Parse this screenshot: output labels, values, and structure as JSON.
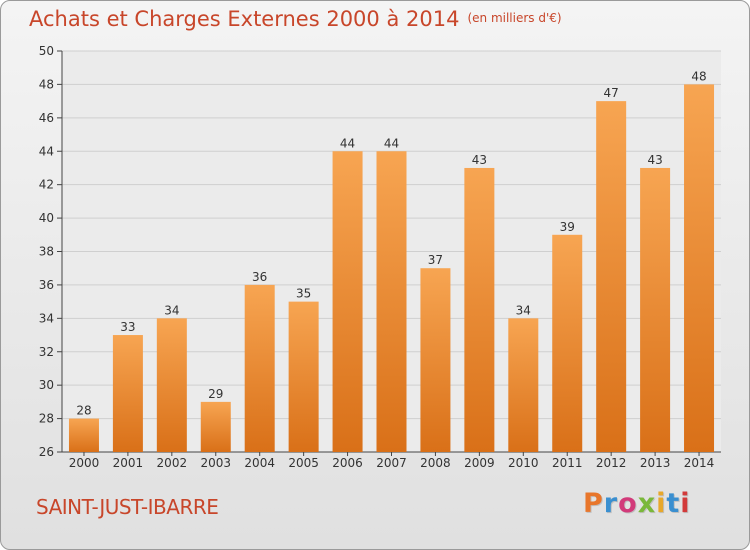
{
  "header": {
    "title": "Achats et Charges Externes 2000 à 2014",
    "unit": "(en milliers d'€)"
  },
  "footer": {
    "commune": "SAINT-JUST-IBARRE",
    "brand": "Proxiti",
    "brand_colors": [
      "#e8762b",
      "#3a8fd0",
      "#d23a7a",
      "#7ab83a",
      "#e8a82b",
      "#3a8fd0",
      "#d23a3a"
    ]
  },
  "colors": {
    "bar_light": "#f7a552",
    "bar_dark": "#d97018",
    "title": "#c8462a",
    "grid": "#cfcfcf"
  },
  "chart_data": {
    "type": "bar",
    "categories": [
      "2000",
      "2001",
      "2002",
      "2003",
      "2004",
      "2005",
      "2006",
      "2007",
      "2008",
      "2009",
      "2010",
      "2011",
      "2012",
      "2013",
      "2014"
    ],
    "values": [
      28,
      33,
      34,
      29,
      36,
      35,
      44,
      44,
      37,
      43,
      34,
      39,
      47,
      43,
      48
    ],
    "title": "Achats et Charges Externes 2000 à 2014",
    "xlabel": "",
    "ylabel": "",
    "ylim": [
      26,
      50
    ],
    "yticks": [
      26,
      28,
      30,
      32,
      34,
      36,
      38,
      40,
      42,
      44,
      46,
      48,
      50
    ],
    "grid": true,
    "data_labels": true
  }
}
